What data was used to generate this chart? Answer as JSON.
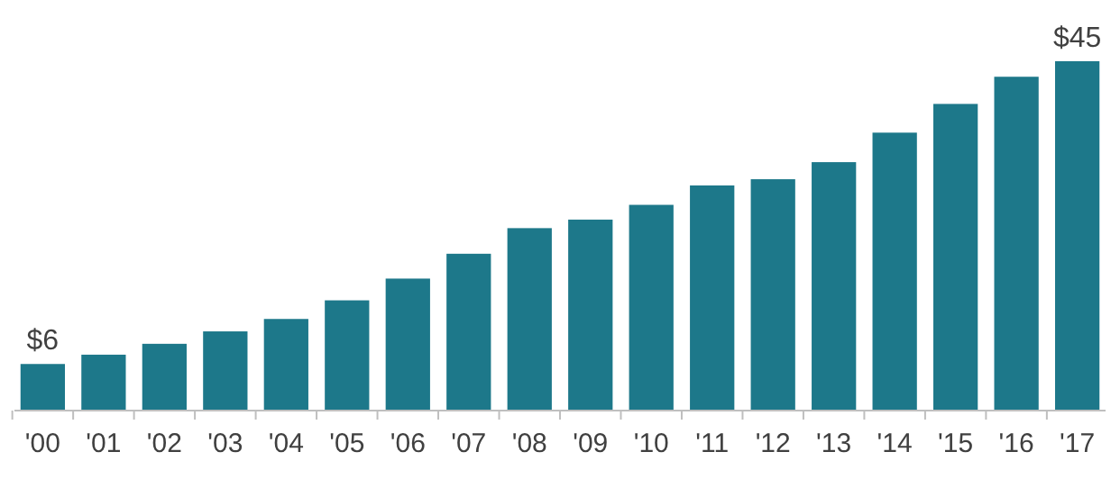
{
  "chart_data": {
    "type": "bar",
    "categories": [
      "'00",
      "'01",
      "'02",
      "'03",
      "'04",
      "'05",
      "'06",
      "'07",
      "'08",
      "'09",
      "'10",
      "'11",
      "'12",
      "'13",
      "'14",
      "'15",
      "'16",
      "'17"
    ],
    "values": [
      6,
      7.2,
      8.6,
      10.2,
      11.8,
      14.2,
      17,
      20.2,
      23.5,
      24.6,
      26.5,
      29,
      29.8,
      32,
      35.8,
      39.5,
      43,
      45
    ],
    "value_labels": [
      "$6",
      null,
      null,
      null,
      null,
      null,
      null,
      null,
      null,
      null,
      null,
      null,
      null,
      null,
      null,
      null,
      null,
      "$45"
    ],
    "color": "#1d788a"
  }
}
